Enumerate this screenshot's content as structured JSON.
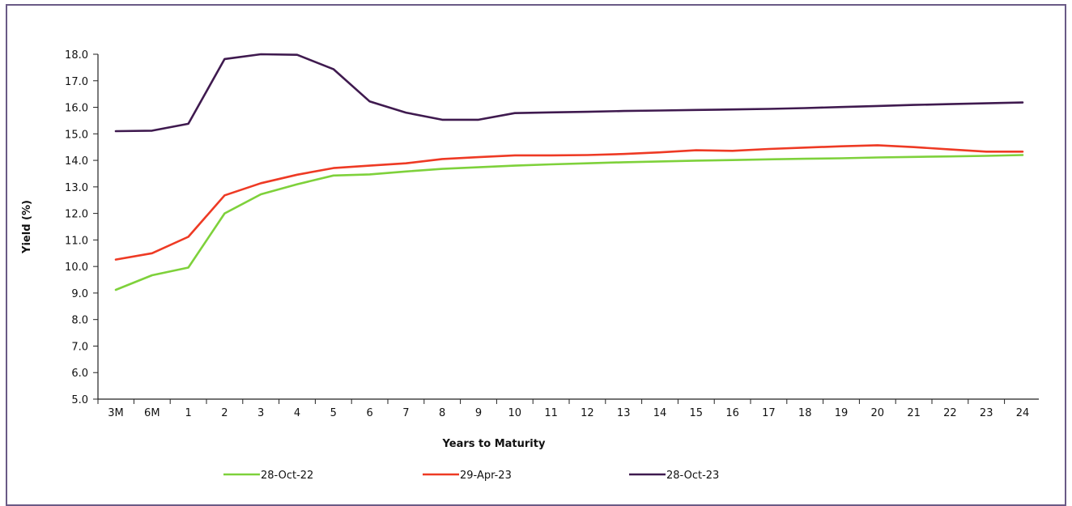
{
  "chart_data": {
    "type": "line",
    "title": "",
    "xlabel": "Years to Maturity",
    "ylabel": "Yield (%)",
    "ylim": [
      5.0,
      18.0
    ],
    "yticks": [
      "5.0",
      "6.0",
      "7.0",
      "8.0",
      "9.0",
      "10.0",
      "11.0",
      "12.0",
      "13.0",
      "14.0",
      "15.0",
      "16.0",
      "17.0",
      "18.0"
    ],
    "categories": [
      "3M",
      "6M",
      "1",
      "2",
      "3",
      "4",
      "5",
      "6",
      "7",
      "8",
      "9",
      "10",
      "11",
      "12",
      "13",
      "14",
      "15",
      "16",
      "17",
      "18",
      "19",
      "20",
      "21",
      "22",
      "23",
      "24"
    ],
    "legend_position": "bottom",
    "grid": false,
    "series": [
      {
        "name": "28-Oct-22",
        "color": "#7ed13b",
        "values": [
          9.12,
          9.67,
          9.96,
          12.0,
          12.72,
          13.1,
          13.43,
          13.47,
          13.58,
          13.68,
          13.74,
          13.8,
          13.85,
          13.89,
          13.93,
          13.96,
          13.99,
          14.01,
          14.04,
          14.06,
          14.08,
          14.11,
          14.13,
          14.15,
          14.17,
          14.2
        ]
      },
      {
        "name": "29-Apr-23",
        "color": "#ee3a24",
        "values": [
          10.26,
          10.5,
          11.12,
          12.68,
          13.14,
          13.46,
          13.71,
          13.8,
          13.89,
          14.05,
          14.12,
          14.19,
          14.19,
          14.2,
          14.24,
          14.3,
          14.38,
          14.36,
          14.43,
          14.48,
          14.53,
          14.57,
          14.5,
          14.41,
          14.33,
          14.33
        ]
      },
      {
        "name": "28-Oct-23",
        "color": "#3f1a4f",
        "values": [
          15.1,
          15.12,
          15.38,
          17.82,
          18.0,
          17.98,
          17.44,
          16.22,
          15.8,
          15.53,
          15.53,
          15.78,
          15.81,
          15.83,
          15.86,
          15.88,
          15.9,
          15.92,
          15.94,
          15.97,
          16.01,
          16.05,
          16.09,
          16.12,
          16.15,
          16.18
        ]
      }
    ]
  }
}
